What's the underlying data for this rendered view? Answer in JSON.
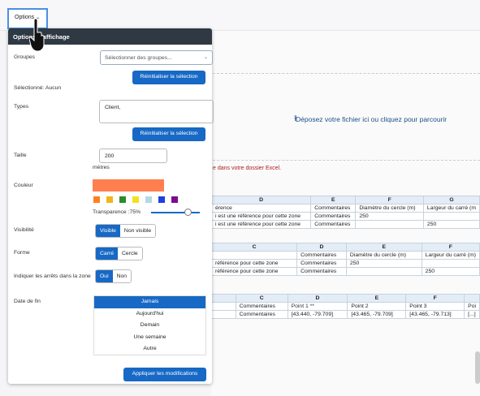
{
  "topbar": {
    "options_label": "Options",
    "caret": "⌄"
  },
  "panel": {
    "title": "Options d'affichage",
    "groups": {
      "label": "Groupes",
      "placeholder": "Sélectionner des groupes...",
      "reset_label": "Réinitialiser la sélection",
      "selected_text": "Sélectionné: Aucun"
    },
    "types": {
      "label": "Types",
      "value": "Client,",
      "reset_label": "Réinitialiser la sélection"
    },
    "size": {
      "label": "Taille",
      "value": "200",
      "unit": "mètres"
    },
    "color": {
      "label": "Couleur",
      "current": "#ff7f4f",
      "swatches": [
        "#ff7f1e",
        "#f3b51a",
        "#2b8c2b",
        "#f2e321",
        "#b5d8e8",
        "#1f3fe0",
        "#7b0c8c"
      ],
      "transparency_label": "Transparence :75%",
      "transparency": 0.75
    },
    "visibility": {
      "label": "Visibilité",
      "options": [
        "Visible",
        "Non visible"
      ],
      "selected": "Visible"
    },
    "shape": {
      "label": "Forme",
      "options": [
        "Carré",
        "Cercle"
      ],
      "selected": "Carré"
    },
    "stops": {
      "label": "Indiquer les arrêts dans la zone",
      "options": [
        "Oui",
        "Non"
      ],
      "selected": "Oui"
    },
    "end_date": {
      "label": "Date de fin",
      "options": [
        "Jamais",
        "Aujourd'hui",
        "Demain",
        "Une semaine",
        "Autre"
      ],
      "selected": "Jamais"
    },
    "apply_label": "Appliquer les modifications"
  },
  "main": {
    "dropzone_text": "Déposez votre fichier ici ou cliquez pour parcourir",
    "warning_text": "e dans votre dossier Excel.",
    "table1": {
      "headers": [
        "D",
        "E",
        "F",
        "G"
      ],
      "rows": [
        [
          "érence",
          "Commentaires",
          "Diamètre du cercle (m)",
          "Largeur du carré (m"
        ],
        [
          "i est une référence pour cette zone",
          "Commentaires",
          "250",
          ""
        ],
        [
          "i est une référence pour cette zone",
          "Commentaires",
          "",
          "250"
        ]
      ]
    },
    "table2": {
      "headers": [
        "C",
        "D",
        "E",
        "F"
      ],
      "rows": [
        [
          "",
          "Commentaires",
          "Diamètre du cercle (m)",
          "Largeur du carré (m)"
        ],
        [
          "référence pour cette zone",
          "Commentaires",
          "250",
          ""
        ],
        [
          "référence pour cette zone",
          "Commentaires",
          "",
          "250"
        ]
      ]
    },
    "table3": {
      "headers": [
        "",
        "C",
        "D",
        "E",
        "F"
      ],
      "rows": [
        [
          "",
          "Commentaires",
          "Point 1 **",
          "Point 2",
          "Point 3",
          "Poi"
        ],
        [
          "",
          "Commentaires",
          "[43.440, -79.709]",
          "[43.465, -79.709]",
          "[43.465, -79.713]",
          "[...]"
        ]
      ]
    }
  }
}
